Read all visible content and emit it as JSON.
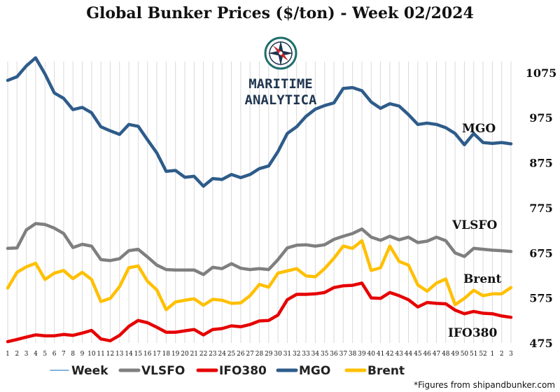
{
  "logo": {
    "line1": "MARITIME",
    "line2": "ANALYTICA",
    "icon": "compass-icon",
    "colors": {
      "navy": "#1f3550",
      "teal": "#1e6e6b",
      "red": "#c62828"
    }
  },
  "footnote": "*Figures from shipandbunker.com",
  "series_labels": {
    "mgo": "MGO",
    "vlsfo": "VLSFO",
    "brent": "Brent",
    "ifo380": "IFO380"
  },
  "legend": [
    {
      "key": "week",
      "label": "Week",
      "color": "#5b9bd5"
    },
    {
      "key": "vlsfo",
      "label": "VLSFO",
      "color": "#7f7f7f"
    },
    {
      "key": "ifo380",
      "label": "IFO380",
      "color": "#e60000"
    },
    {
      "key": "mgo",
      "label": "MGO",
      "color": "#2e5c8a"
    },
    {
      "key": "brent",
      "label": "Brent",
      "color": "#ffc000"
    }
  ],
  "chart_data": {
    "type": "line",
    "title": "Global Bunker Prices ($/ton) -  Week 02/2024",
    "ylim": [
      475,
      1140
    ],
    "yticks": [
      475,
      575,
      675,
      775,
      875,
      975,
      1075
    ],
    "grid": "vertical",
    "categories": [
      "1",
      "2",
      "3",
      "4",
      "5",
      "6",
      "7",
      "8",
      "9",
      "10",
      "11",
      "12",
      "13",
      "14",
      "15",
      "16",
      "17",
      "18",
      "19",
      "20",
      "21",
      "22",
      "23",
      "24",
      "25",
      "26",
      "27",
      "28",
      "29",
      "30",
      "31",
      "32",
      "33",
      "34",
      "35",
      "36",
      "37",
      "38",
      "39",
      "40",
      "41",
      "42",
      "43",
      "44",
      "45",
      "46",
      "47",
      "48",
      "49",
      "50",
      "51",
      "52",
      "1",
      "2",
      "3"
    ],
    "series": [
      {
        "name": "MGO",
        "key": "mgo",
        "color": "#2e5c8a",
        "values": [
          1058,
          1066,
          1090,
          1108,
          1072,
          1030,
          1018,
          993,
          998,
          986,
          955,
          946,
          938,
          960,
          956,
          926,
          897,
          856,
          858,
          843,
          845,
          823,
          840,
          838,
          849,
          842,
          849,
          862,
          868,
          900,
          940,
          955,
          978,
          994,
          1002,
          1008,
          1040,
          1042,
          1035,
          1010,
          996,
          1006,
          1001,
          982,
          960,
          963,
          960,
          953,
          940,
          915,
          940,
          920,
          918,
          920,
          917
        ]
      },
      {
        "name": "VLSFO",
        "key": "vlsfo",
        "color": "#7f7f7f",
        "values": [
          685,
          686,
          726,
          740,
          738,
          730,
          718,
          687,
          694,
          690,
          660,
          658,
          662,
          680,
          683,
          666,
          648,
          638,
          637,
          637,
          637,
          627,
          643,
          640,
          651,
          641,
          638,
          640,
          638,
          660,
          686,
          692,
          693,
          690,
          693,
          705,
          712,
          718,
          728,
          710,
          703,
          712,
          704,
          710,
          698,
          701,
          710,
          702,
          675,
          667,
          685,
          683,
          681,
          680,
          678
        ]
      },
      {
        "name": "Brent",
        "key": "brent",
        "color": "#ffc000",
        "values": [
          597,
          632,
          644,
          652,
          616,
          630,
          636,
          618,
          632,
          616,
          567,
          574,
          600,
          642,
          646,
          612,
          593,
          549,
          566,
          570,
          573,
          559,
          572,
          570,
          563,
          564,
          580,
          605,
          599,
          630,
          635,
          640,
          624,
          622,
          640,
          663,
          690,
          685,
          702,
          636,
          642,
          690,
          656,
          648,
          604,
          590,
          608,
          617,
          560,
          574,
          592,
          580,
          584,
          584,
          598
        ]
      },
      {
        "name": "IFO380",
        "key": "ifo380",
        "color": "#e60000",
        "values": [
          478,
          483,
          488,
          493,
          491,
          491,
          494,
          492,
          497,
          503,
          484,
          480,
          492,
          512,
          525,
          520,
          510,
          499,
          499,
          502,
          505,
          493,
          505,
          507,
          513,
          511,
          516,
          524,
          525,
          537,
          571,
          583,
          583,
          584,
          587,
          598,
          602,
          603,
          608,
          575,
          574,
          587,
          580,
          571,
          555,
          565,
          563,
          562,
          548,
          540,
          545,
          541,
          540,
          535,
          532
        ]
      }
    ]
  }
}
